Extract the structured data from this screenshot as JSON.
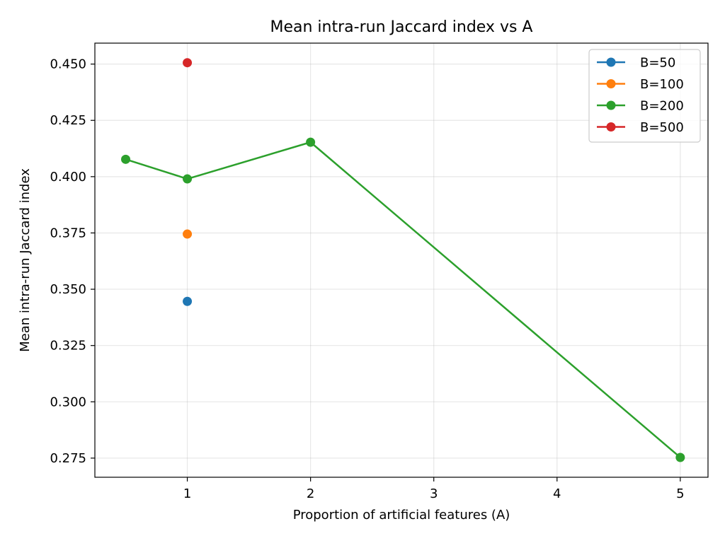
{
  "chart_data": {
    "type": "line",
    "title": "Mean intra-run Jaccard index vs A",
    "xlabel": "Proportion of artificial features (A)",
    "ylabel": "Mean intra-run Jaccard index",
    "xlim": [
      0.25,
      5.225
    ],
    "ylim": [
      0.2665,
      0.4593
    ],
    "xticks": [
      1,
      2,
      3,
      4,
      5
    ],
    "xtick_labels": [
      "1",
      "2",
      "3",
      "4",
      "5"
    ],
    "yticks": [
      0.275,
      0.3,
      0.325,
      0.35,
      0.375,
      0.4,
      0.425,
      0.45
    ],
    "ytick_labels": [
      "0.275",
      "0.300",
      "0.325",
      "0.350",
      "0.375",
      "0.400",
      "0.425",
      "0.450"
    ],
    "grid": true,
    "legend_position": "top-right",
    "series": [
      {
        "name": "B=50",
        "color": "#1f77b4",
        "x": [
          1
        ],
        "y": [
          0.3446
        ]
      },
      {
        "name": "B=100",
        "color": "#ff7f0e",
        "x": [
          1
        ],
        "y": [
          0.3745
        ]
      },
      {
        "name": "B=200",
        "color": "#2ca02c",
        "x": [
          0.5,
          1,
          2,
          5
        ],
        "y": [
          0.4077,
          0.399,
          0.4153,
          0.2753
        ]
      },
      {
        "name": "B=500",
        "color": "#d62728",
        "x": [
          1
        ],
        "y": [
          0.4506
        ]
      }
    ]
  }
}
